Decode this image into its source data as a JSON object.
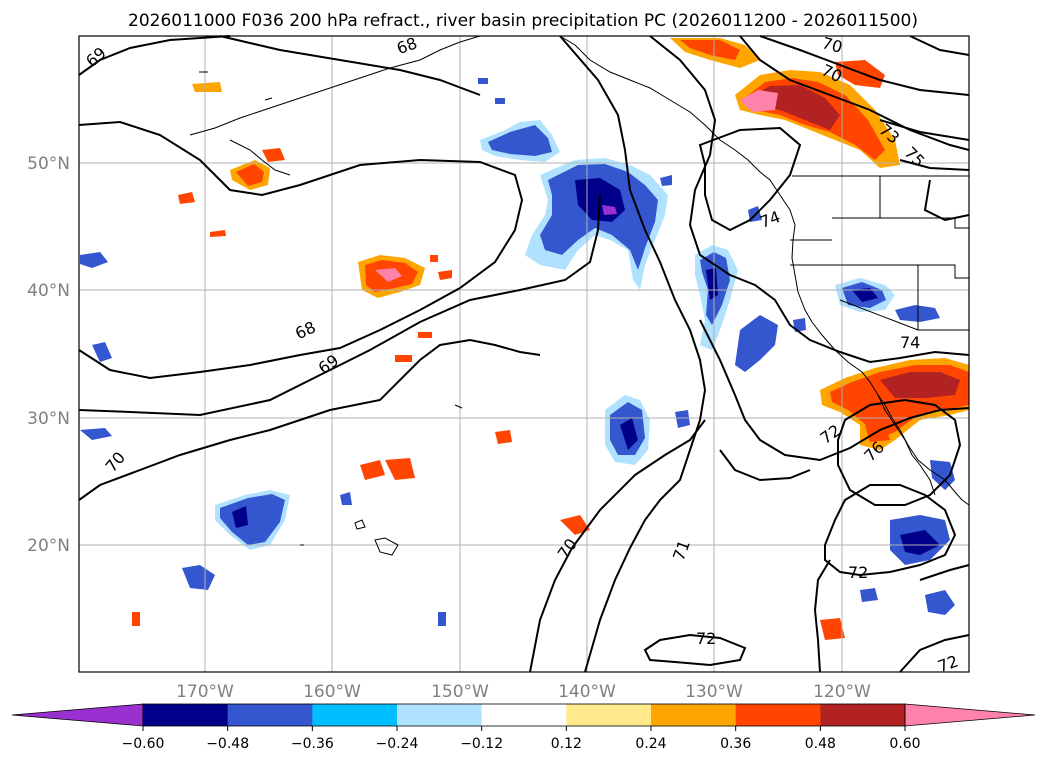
{
  "title": "2026011000 F036 200 hPa refract., river basin precipitation PC (2026011200 - 2026011500)",
  "lat_labels": [
    "50°N",
    "40°N",
    "30°N",
    "20°N"
  ],
  "lon_labels": [
    "170°W",
    "160°W",
    "150°W",
    "140°W",
    "130°W",
    "120°W"
  ],
  "colorbar": {
    "ticks": [
      "−0.60",
      "−0.48",
      "−0.36",
      "−0.24",
      "−0.12",
      "0.12",
      "0.24",
      "0.36",
      "0.48",
      "0.60"
    ],
    "colors": [
      "#9b30d0",
      "#00008b",
      "#3457d0",
      "#00bfff",
      "#b0e2ff",
      "#ffffff",
      "#ffe98a",
      "#ffa500",
      "#ff4500",
      "#b22222",
      "#ff82ab"
    ],
    "extend": "both"
  },
  "contour_labels": [
    "69",
    "68",
    "70",
    "70",
    "73",
    "75",
    "74",
    "68",
    "69",
    "74",
    "70",
    "72",
    "76",
    "70",
    "71",
    "72",
    "72",
    "72"
  ],
  "colors": {
    "gridline": "#b0b0b0",
    "contour": "#000000",
    "coast": "#000000",
    "axis_label": "#808080"
  }
}
